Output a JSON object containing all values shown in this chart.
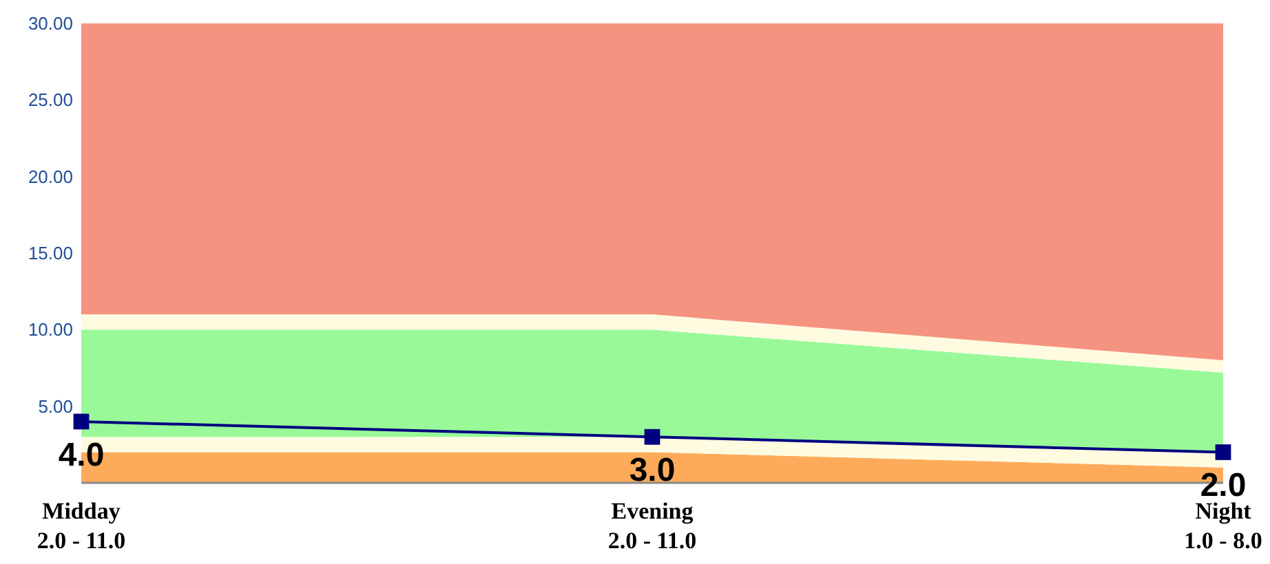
{
  "chart_data": {
    "type": "area",
    "stacked": true,
    "categories": [
      "Midday\n2.0 - 11.0",
      "Evening\n2.0 - 11.0",
      "Night\n1.0 - 8.0"
    ],
    "ylim": [
      0,
      30
    ],
    "yticks": [
      {
        "value": 5,
        "label": "5.00"
      },
      {
        "value": 10,
        "label": "10.00"
      },
      {
        "value": 15,
        "label": "15.00"
      },
      {
        "value": 20,
        "label": "20.00"
      },
      {
        "value": 25,
        "label": "25.00"
      },
      {
        "value": 30,
        "label": "30.00"
      }
    ],
    "grid": false,
    "series": [
      {
        "color": "#fdab5a",
        "values": [
          2,
          2,
          1
        ]
      },
      {
        "color": "#fffbe0",
        "values": [
          1,
          1,
          1
        ]
      },
      {
        "color": "#99f999",
        "values": [
          7,
          7,
          5.2
        ]
      },
      {
        "color": "#fffbe0",
        "values": [
          1,
          1,
          0.8
        ]
      },
      {
        "color": "#f4937f",
        "values": [
          19,
          19,
          22
        ]
      },
      {
        "type": "line",
        "color": "#000080",
        "marker": "square",
        "line_style": "solid",
        "values": [
          4,
          3,
          2
        ],
        "value_labels": [
          "4.0",
          "3.0",
          "2.0"
        ]
      }
    ]
  }
}
